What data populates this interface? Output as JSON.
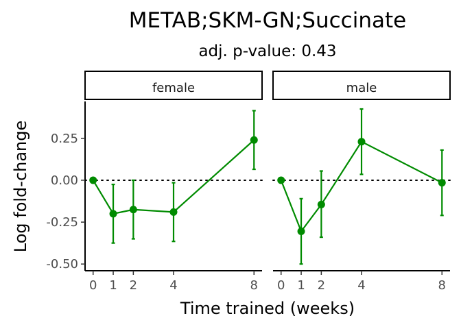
{
  "chart_data": {
    "type": "line",
    "title": "METAB;SKM-GN;Succinate",
    "subtitle": "adj. p-value: 0.43",
    "xlabel": "Time trained (weeks)",
    "ylabel": "Log fold-change",
    "x_ticks": [
      0,
      1,
      2,
      4,
      8
    ],
    "y_ticks": [
      0.25,
      0.0,
      -0.25,
      -0.5
    ],
    "y_tick_labels": [
      "0.25",
      "0.00",
      "-0.25",
      "-0.50"
    ],
    "ylim": [
      -0.54,
      0.47
    ],
    "xlim": [
      -0.4,
      8.4
    ],
    "reference_line": 0,
    "color": "#008b00",
    "facets": [
      {
        "label": "female",
        "x": [
          0,
          1,
          2,
          4,
          8
        ],
        "y": [
          0.0,
          -0.2,
          -0.175,
          -0.19,
          0.24
        ],
        "error_low": [
          0.0,
          -0.375,
          -0.35,
          -0.365,
          0.065
        ],
        "error_high": [
          0.0,
          -0.025,
          0.0,
          -0.015,
          0.415
        ]
      },
      {
        "label": "male",
        "x": [
          0,
          1,
          2,
          4,
          8
        ],
        "y": [
          0.0,
          -0.305,
          -0.145,
          0.23,
          -0.015
        ],
        "error_low": [
          0.0,
          -0.5,
          -0.34,
          0.035,
          -0.21
        ],
        "error_high": [
          0.0,
          -0.11,
          0.055,
          0.425,
          0.18
        ]
      }
    ]
  }
}
